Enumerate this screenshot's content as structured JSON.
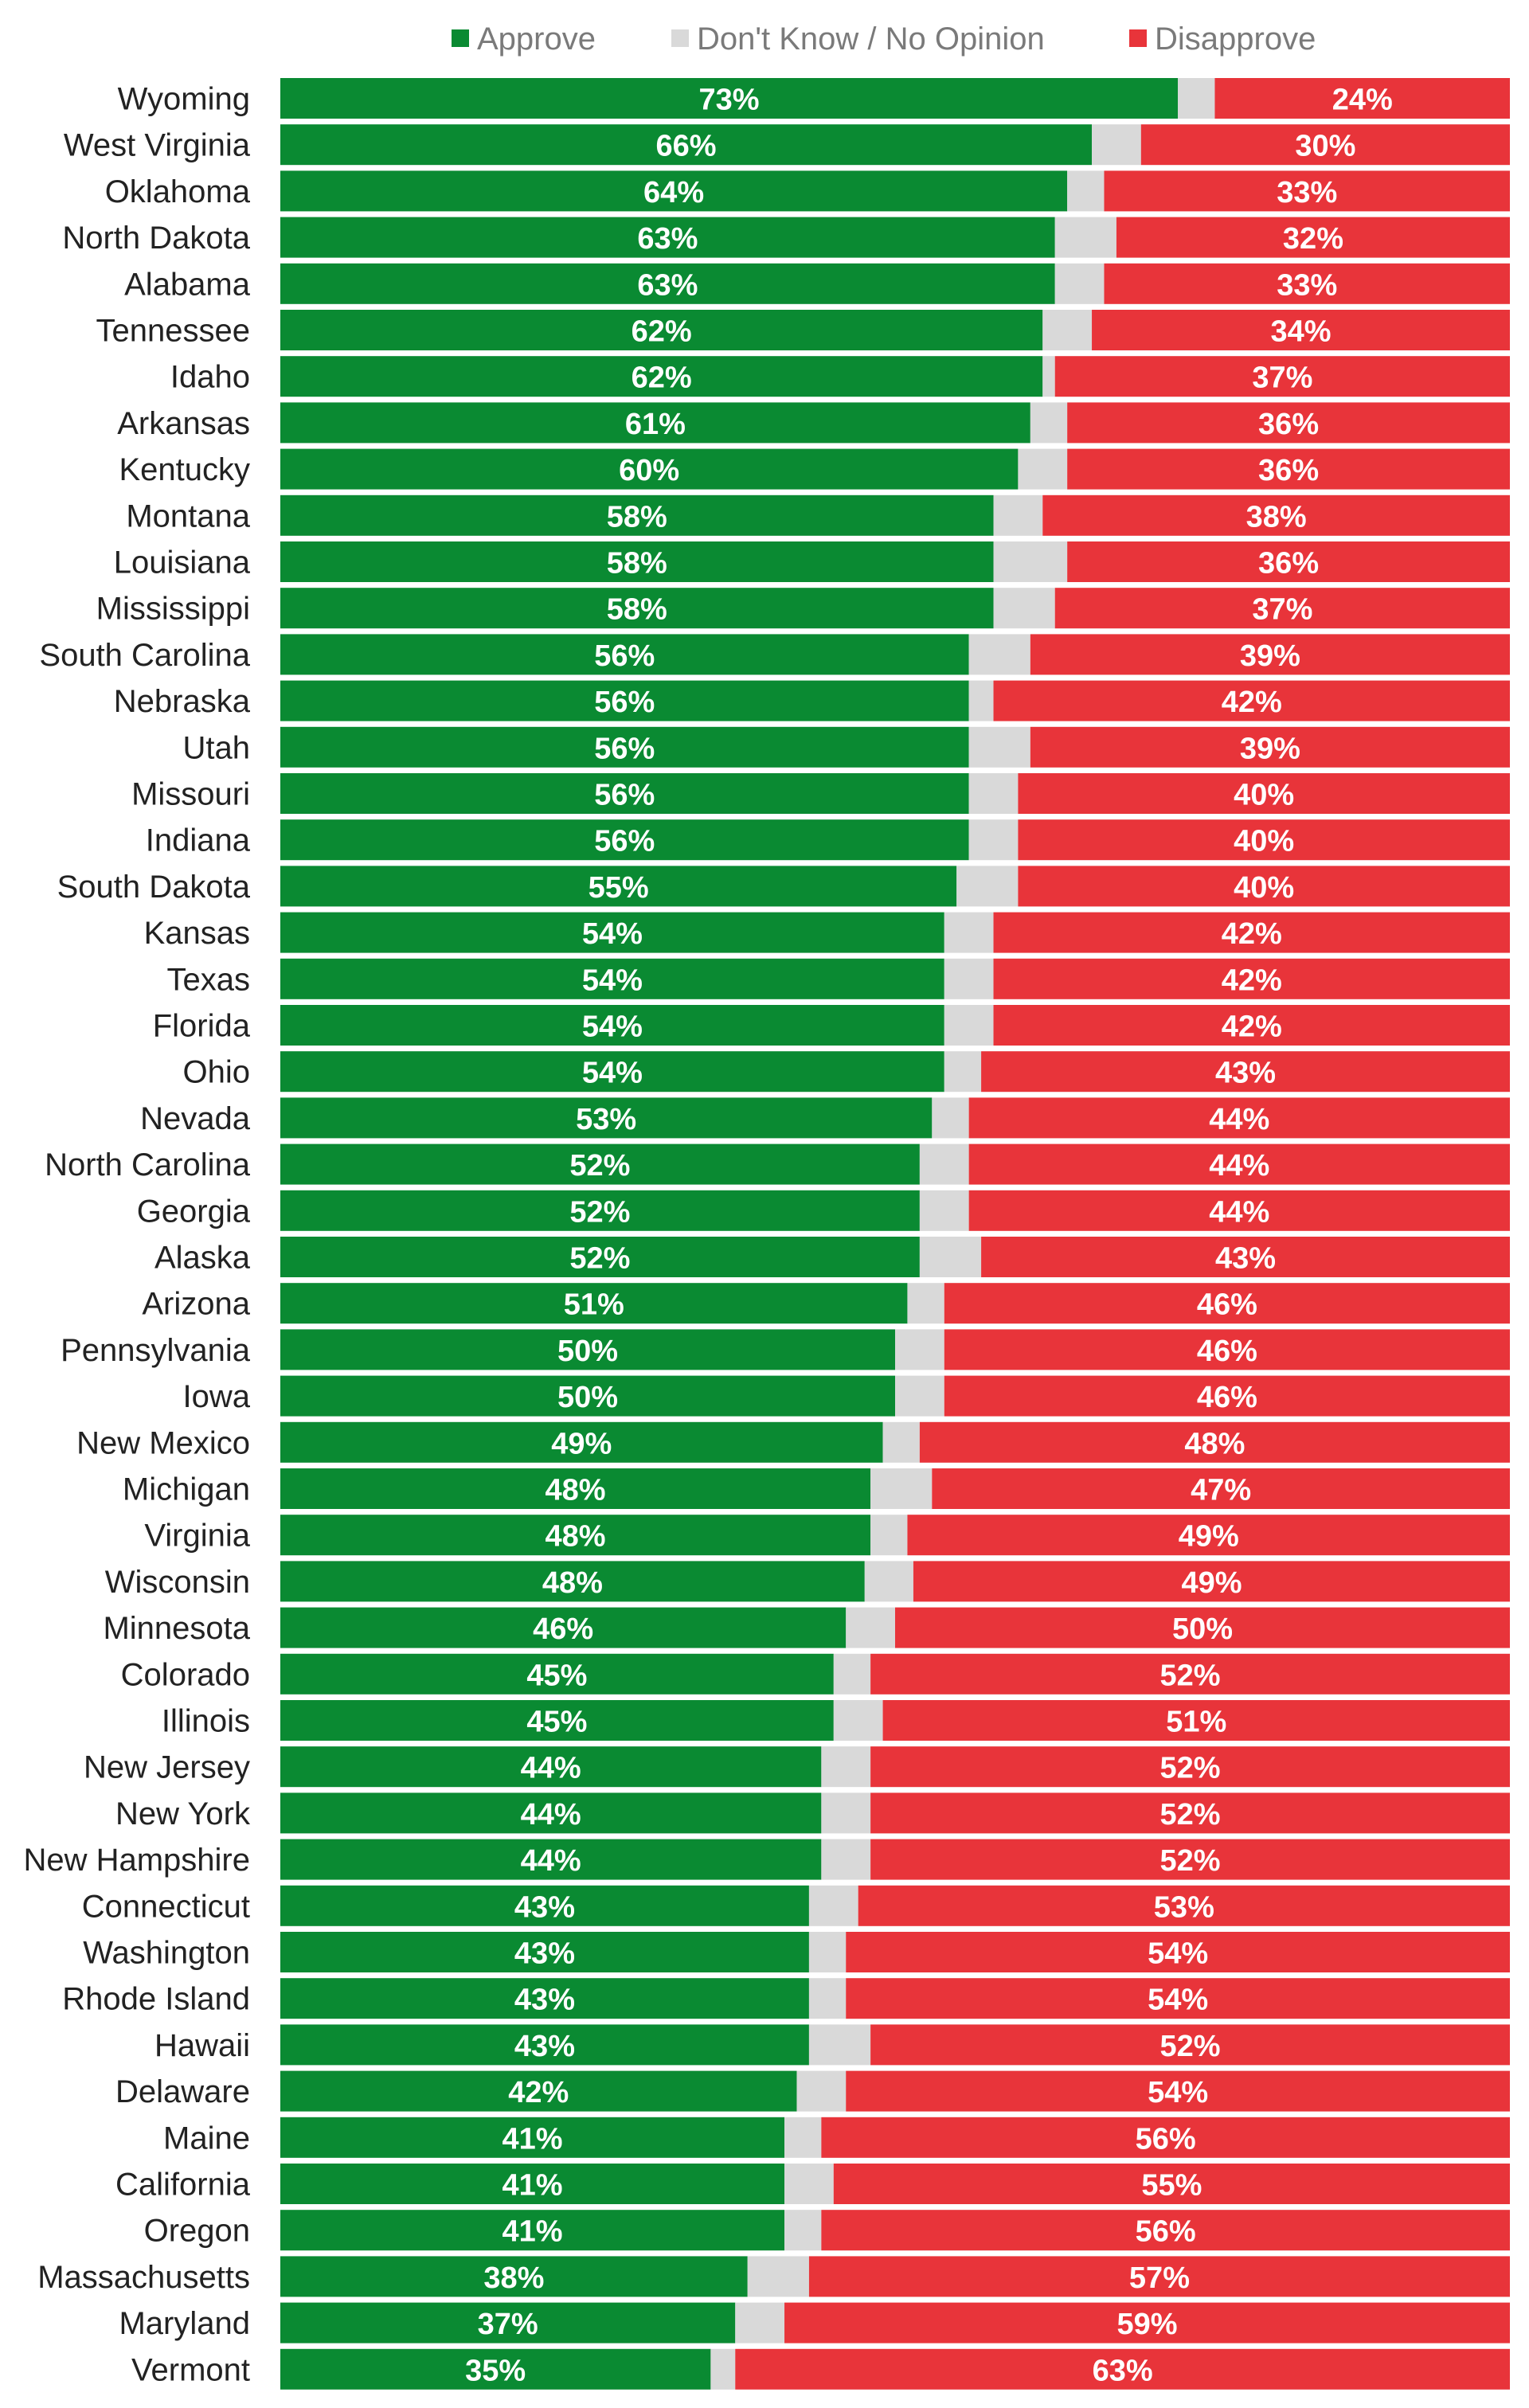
{
  "colors": {
    "approve": "#0a8a32",
    "dont_know": "#d9d9d9",
    "disapprove": "#e8343a"
  },
  "chart_data": {
    "type": "bar",
    "orientation": "horizontal",
    "stacked": true,
    "title": "",
    "xlabel": "",
    "ylabel": "",
    "xlim": [
      0,
      100
    ],
    "grid": false,
    "legend_position": "top",
    "categories": [
      "Wyoming",
      "West Virginia",
      "Oklahoma",
      "North Dakota",
      "Alabama",
      "Tennessee",
      "Idaho",
      "Arkansas",
      "Kentucky",
      "Montana",
      "Louisiana",
      "Mississippi",
      "South Carolina",
      "Nebraska",
      "Utah",
      "Missouri",
      "Indiana",
      "South Dakota",
      "Kansas",
      "Texas",
      "Florida",
      "Ohio",
      "Nevada",
      "North Carolina",
      "Georgia",
      "Alaska",
      "Arizona",
      "Pennsylvania",
      "Iowa",
      "New Mexico",
      "Michigan",
      "Virginia",
      "Wisconsin",
      "Minnesota",
      "Colorado",
      "Illinois",
      "New Jersey",
      "New York",
      "New Hampshire",
      "Connecticut",
      "Washington",
      "Rhode Island",
      "Hawaii",
      "Delaware",
      "Maine",
      "California",
      "Oregon",
      "Massachusetts",
      "Maryland",
      "Vermont"
    ],
    "series": [
      {
        "name": "Approve",
        "values": [
          73,
          66,
          64,
          63,
          63,
          62,
          62,
          61,
          60,
          58,
          58,
          58,
          56,
          56,
          56,
          56,
          56,
          55,
          54,
          54,
          54,
          54,
          53,
          52,
          52,
          52,
          51,
          50,
          50,
          49,
          48,
          48,
          48,
          46,
          45,
          45,
          44,
          44,
          44,
          43,
          43,
          43,
          43,
          42,
          41,
          41,
          41,
          38,
          37,
          35
        ]
      },
      {
        "name": "Don't Know / No Opinion",
        "values": [
          3,
          4,
          3,
          5,
          4,
          4,
          1,
          3,
          4,
          4,
          6,
          5,
          5,
          2,
          5,
          4,
          4,
          5,
          4,
          4,
          4,
          3,
          3,
          4,
          4,
          5,
          3,
          4,
          4,
          3,
          5,
          3,
          4,
          4,
          3,
          4,
          4,
          4,
          4,
          4,
          3,
          3,
          5,
          4,
          3,
          4,
          3,
          5,
          4,
          2
        ]
      },
      {
        "name": "Disapprove",
        "values": [
          24,
          30,
          33,
          32,
          33,
          34,
          37,
          36,
          36,
          38,
          36,
          37,
          39,
          42,
          39,
          40,
          40,
          40,
          42,
          42,
          42,
          43,
          44,
          44,
          44,
          43,
          46,
          46,
          46,
          48,
          47,
          49,
          49,
          50,
          52,
          51,
          52,
          52,
          52,
          53,
          54,
          54,
          52,
          54,
          56,
          55,
          56,
          57,
          59,
          63
        ]
      }
    ],
    "data_labels": {
      "Approve": [
        "73%",
        "66%",
        "64%",
        "63%",
        "63%",
        "62%",
        "62%",
        "61%",
        "60%",
        "58%",
        "58%",
        "58%",
        "56%",
        "56%",
        "56%",
        "56%",
        "56%",
        "55%",
        "54%",
        "54%",
        "54%",
        "54%",
        "53%",
        "52%",
        "52%",
        "52%",
        "51%",
        "50%",
        "50%",
        "49%",
        "48%",
        "48%",
        "48%",
        "46%",
        "45%",
        "45%",
        "44%",
        "44%",
        "44%",
        "43%",
        "43%",
        "43%",
        "43%",
        "42%",
        "41%",
        "41%",
        "41%",
        "38%",
        "37%",
        "35%"
      ],
      "Disapprove": [
        "24%",
        "30%",
        "33%",
        "32%",
        "33%",
        "34%",
        "37%",
        "36%",
        "36%",
        "38%",
        "36%",
        "37%",
        "39%",
        "42%",
        "39%",
        "40%",
        "40%",
        "40%",
        "42%",
        "42%",
        "42%",
        "43%",
        "44%",
        "44%",
        "44%",
        "43%",
        "46%",
        "46%",
        "46%",
        "48%",
        "47%",
        "49%",
        "49%",
        "50%",
        "52%",
        "51%",
        "52%",
        "52%",
        "52%",
        "53%",
        "54%",
        "54%",
        "52%",
        "54%",
        "56%",
        "55%",
        "56%",
        "57%",
        "59%",
        "63%"
      ]
    }
  }
}
